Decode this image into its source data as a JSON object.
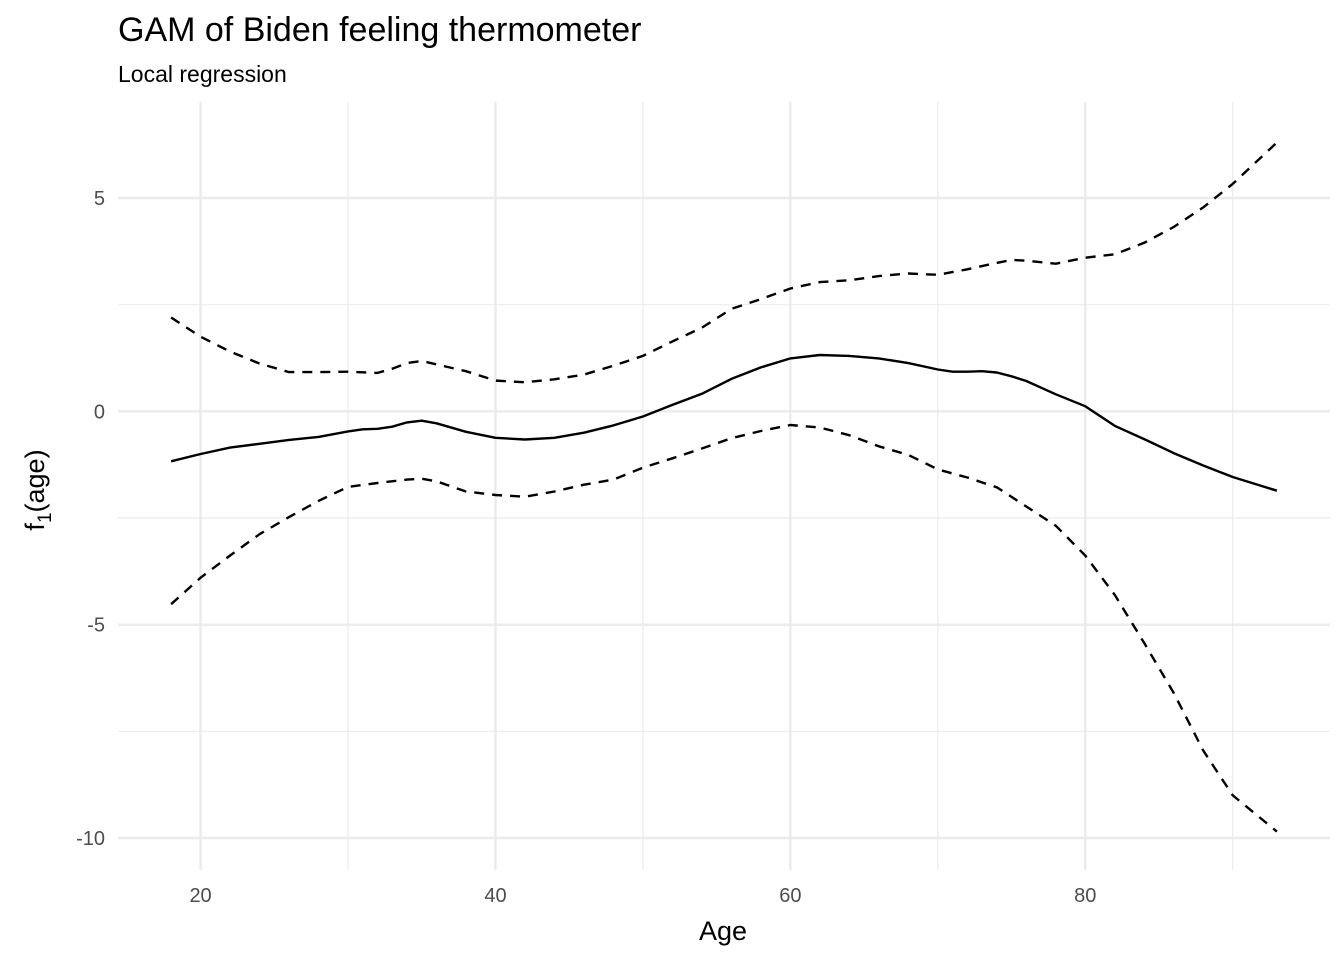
{
  "chart_data": {
    "type": "line",
    "title": "GAM of Biden feeling thermometer",
    "subtitle": "Local regression",
    "xlabel": "Age",
    "ylabel": "f1(age)",
    "ylabel_main": "f",
    "ylabel_sub": "1",
    "ylabel_rest": "(age)",
    "xlim": [
      14.4,
      96.6
    ],
    "ylim": [
      -10.75,
      7.25
    ],
    "x_ticks": [
      20,
      40,
      60,
      80
    ],
    "x_tick_labels": [
      "20",
      "40",
      "60",
      "80"
    ],
    "x_minor_ticks": [
      30,
      50,
      70,
      90
    ],
    "y_ticks": [
      -10,
      -5,
      0,
      5
    ],
    "y_tick_labels": [
      "-10",
      "-5",
      "0",
      "5"
    ],
    "y_minor_ticks": [
      -7.5,
      -2.5,
      2.5
    ],
    "grid": true,
    "legend": "none",
    "series": [
      {
        "style": "solid",
        "x": [
          18,
          20,
          22,
          24,
          26,
          28,
          30,
          31,
          32,
          33,
          34,
          35,
          36,
          38,
          40,
          42,
          44,
          46,
          48,
          50,
          52,
          54,
          56,
          58,
          60,
          62,
          64,
          66,
          68,
          70,
          71,
          72,
          73,
          74,
          75,
          76,
          78,
          80,
          82,
          84,
          86,
          88,
          90,
          93
        ],
        "y": [
          -1.17,
          -1.0,
          -0.85,
          -0.76,
          -0.67,
          -0.6,
          -0.47,
          -0.42,
          -0.41,
          -0.36,
          -0.26,
          -0.22,
          -0.28,
          -0.48,
          -0.62,
          -0.66,
          -0.62,
          -0.5,
          -0.33,
          -0.12,
          0.15,
          0.41,
          0.76,
          1.03,
          1.24,
          1.32,
          1.3,
          1.24,
          1.13,
          0.98,
          0.93,
          0.93,
          0.94,
          0.91,
          0.82,
          0.71,
          0.4,
          0.12,
          -0.34,
          -0.65,
          -0.98,
          -1.27,
          -1.54,
          -1.86
        ]
      },
      {
        "style": "dashed",
        "x": [
          18,
          20,
          22,
          24,
          26,
          28,
          30,
          32,
          33,
          34,
          35,
          36,
          38,
          40,
          42,
          44,
          46,
          48,
          50,
          52,
          54,
          56,
          58,
          60,
          62,
          64,
          66,
          68,
          70,
          72,
          74,
          75,
          76,
          78,
          80,
          82,
          84,
          86,
          88,
          90,
          93
        ],
        "y": [
          2.2,
          1.75,
          1.4,
          1.12,
          0.92,
          0.92,
          0.93,
          0.9,
          1.0,
          1.13,
          1.18,
          1.1,
          0.94,
          0.72,
          0.68,
          0.75,
          0.86,
          1.07,
          1.3,
          1.64,
          1.96,
          2.4,
          2.63,
          2.88,
          3.03,
          3.07,
          3.17,
          3.23,
          3.2,
          3.33,
          3.48,
          3.55,
          3.53,
          3.46,
          3.6,
          3.68,
          3.95,
          4.32,
          4.78,
          5.33,
          6.3
        ]
      },
      {
        "style": "dashed",
        "x": [
          18,
          20,
          22,
          24,
          26,
          28,
          30,
          32,
          34,
          35,
          36,
          38,
          40,
          42,
          44,
          46,
          48,
          50,
          52,
          54,
          56,
          58,
          60,
          62,
          64,
          66,
          68,
          70,
          72,
          74,
          76,
          78,
          80,
          82,
          84,
          86,
          88,
          90,
          93
        ],
        "y": [
          -4.52,
          -3.9,
          -3.38,
          -2.88,
          -2.48,
          -2.1,
          -1.77,
          -1.68,
          -1.6,
          -1.58,
          -1.64,
          -1.88,
          -1.96,
          -2.0,
          -1.88,
          -1.72,
          -1.6,
          -1.32,
          -1.1,
          -0.87,
          -0.63,
          -0.46,
          -0.32,
          -0.38,
          -0.56,
          -0.82,
          -1.02,
          -1.36,
          -1.55,
          -1.78,
          -2.23,
          -2.68,
          -3.38,
          -4.3,
          -5.43,
          -6.6,
          -7.95,
          -9.0,
          -9.85
        ]
      }
    ]
  }
}
